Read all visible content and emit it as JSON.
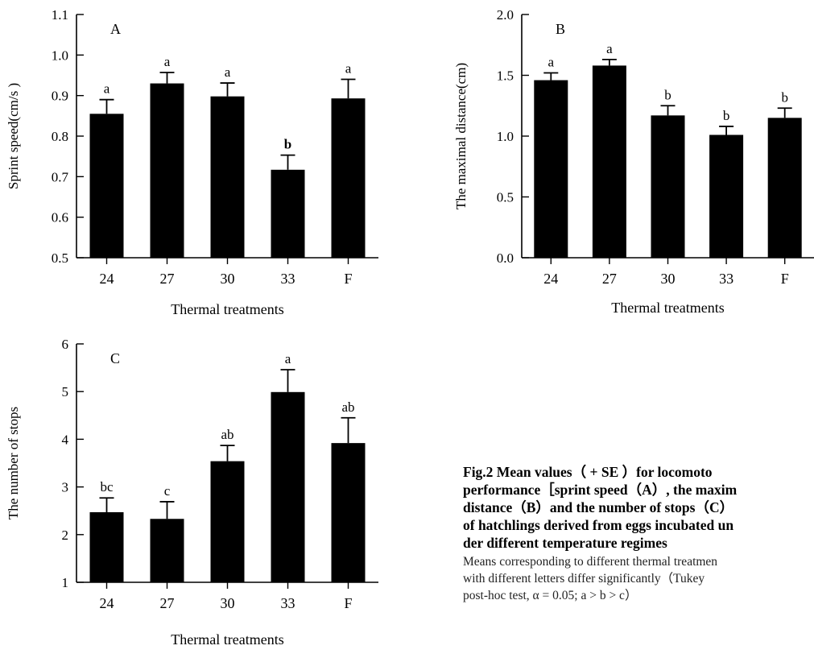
{
  "chart_data": [
    {
      "type": "bar",
      "panel_label": "A",
      "title": "",
      "xlabel": "Thermal treatments",
      "ylabel": "Sprint speed(cm/s )",
      "categories": [
        "24",
        "27",
        "30",
        "33",
        "F"
      ],
      "values": [
        0.855,
        0.93,
        0.898,
        0.717,
        0.893
      ],
      "errors": [
        0.035,
        0.027,
        0.033,
        0.036,
        0.047
      ],
      "letters": [
        "a",
        "a",
        "a",
        "b",
        "a"
      ],
      "ylim": [
        0.5,
        1.1
      ],
      "yticks": [
        "0.5",
        "0.6",
        "0.7",
        "0.8",
        "0.9",
        "1.0",
        "1.1"
      ],
      "grid": false,
      "bar_color": "#000000"
    },
    {
      "type": "bar",
      "panel_label": "B",
      "title": "",
      "xlabel": "Thermal treatments",
      "ylabel": "The maximal distance(cm)",
      "categories": [
        "24",
        "27",
        "30",
        "33",
        "F"
      ],
      "values": [
        1.46,
        1.58,
        1.17,
        1.01,
        1.15
      ],
      "errors": [
        0.06,
        0.05,
        0.08,
        0.07,
        0.08
      ],
      "letters": [
        "a",
        "a",
        "b",
        "b",
        "b"
      ],
      "ylim": [
        0.0,
        2.0
      ],
      "yticks": [
        "0.0",
        "0.5",
        "1.0",
        "1.5",
        "2.0"
      ],
      "grid": false,
      "bar_color": "#000000"
    },
    {
      "type": "bar",
      "panel_label": "C",
      "title": "",
      "xlabel": "Thermal treatments",
      "ylabel": "The number of stops",
      "categories": [
        "24",
        "27",
        "30",
        "33",
        "F"
      ],
      "values": [
        2.47,
        2.33,
        3.54,
        4.99,
        3.92
      ],
      "errors": [
        0.3,
        0.36,
        0.33,
        0.47,
        0.53
      ],
      "letters": [
        "bc",
        "c",
        "ab",
        "a",
        "ab"
      ],
      "ylim": [
        1,
        6
      ],
      "yticks": [
        "1",
        "2",
        "3",
        "4",
        "5",
        "6"
      ],
      "grid": false,
      "bar_color": "#000000"
    }
  ],
  "caption": {
    "title": "Fig.2    Mean values（ + SE ）for locomoto\nperformance［sprint speed（A）, the maxim\ndistance（B）and the number of stops（C）\nof hatchlings derived from eggs incubated un\nder different temperature regimes",
    "note": "Means corresponding to different thermal treatmen\nwith different letters differ significantly（Tukey\npost-hoc test, α = 0.05; a > b > c）"
  }
}
